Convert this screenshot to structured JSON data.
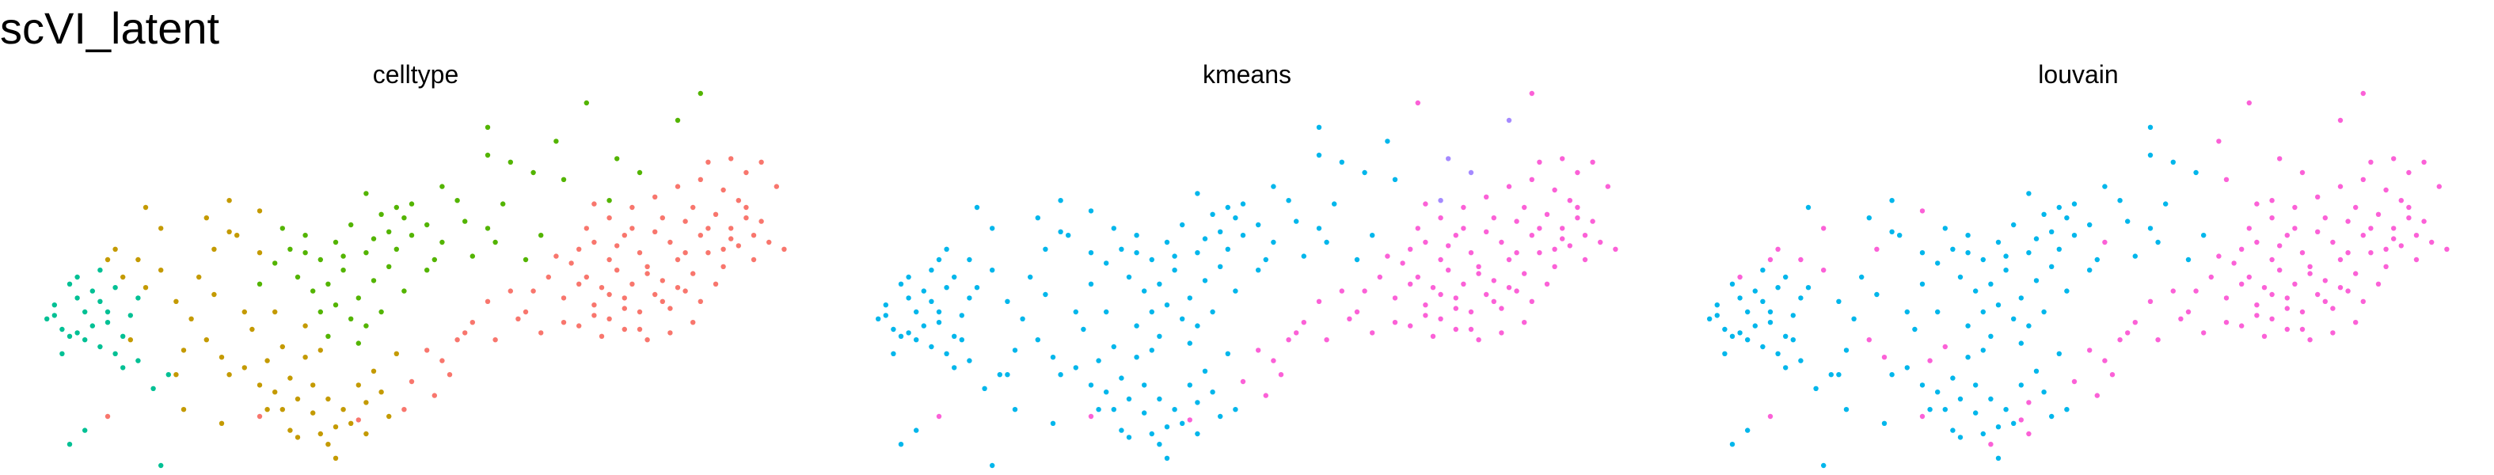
{
  "figure": {
    "title": "scVI_latent"
  },
  "chart_data": {
    "type": "scatter",
    "title": "scVI_latent",
    "xlabel": "",
    "ylabel": "",
    "grid": false,
    "legend": "none",
    "axis": {
      "x_range": [
        0,
        100
      ],
      "y_range": [
        0,
        100
      ]
    },
    "palette": {
      "c_red": "#F8766D",
      "c_orange": "#C49A00",
      "c_green": "#53B400",
      "c_teal": "#00C094",
      "c_cyan": "#00B6EB",
      "c_violet": "#A58AFF",
      "c_pink": "#FB61D7"
    },
    "panels": [
      {
        "id": "celltype",
        "title": "celltype"
      },
      {
        "id": "kmeans",
        "title": "kmeans"
      },
      {
        "id": "louvain",
        "title": "louvain"
      }
    ],
    "points": [
      [
        2,
        38,
        3,
        4,
        4
      ],
      [
        4,
        35,
        3,
        4,
        4
      ],
      [
        5,
        33,
        3,
        4,
        4
      ],
      [
        6,
        34,
        3,
        4,
        4
      ],
      [
        7,
        32,
        3,
        4,
        4
      ],
      [
        8,
        36,
        3,
        4,
        4
      ],
      [
        9,
        30,
        3,
        4,
        4
      ],
      [
        10,
        40,
        3,
        4,
        4
      ],
      [
        11,
        28,
        3,
        4,
        4
      ],
      [
        6,
        44,
        3,
        4,
        4
      ],
      [
        3,
        42,
        3,
        4,
        4
      ],
      [
        8,
        46,
        3,
        4,
        4
      ],
      [
        12,
        33,
        3,
        4,
        4
      ],
      [
        9,
        43,
        3,
        4,
        4
      ],
      [
        5,
        48,
        3,
        4,
        4
      ],
      [
        13,
        39,
        3,
        4,
        4
      ],
      [
        7,
        40,
        3,
        4,
        4
      ],
      [
        10,
        37,
        3,
        4,
        4
      ],
      [
        14,
        26,
        3,
        4,
        4
      ],
      [
        4,
        28,
        3,
        4,
        4
      ],
      [
        16,
        18,
        3,
        4,
        4
      ],
      [
        12,
        24,
        3,
        4,
        4
      ],
      [
        18,
        22,
        3,
        4,
        4
      ],
      [
        11,
        47,
        3,
        4,
        4
      ],
      [
        9,
        52,
        3,
        4,
        4
      ],
      [
        14,
        44,
        3,
        4,
        4
      ],
      [
        7,
        6,
        3,
        4,
        4
      ],
      [
        5,
        2,
        3,
        4,
        4
      ],
      [
        17,
        -8,
        3,
        4,
        4
      ],
      [
        6,
        50,
        3,
        4,
        6
      ],
      [
        3,
        39,
        3,
        4,
        4
      ],
      [
        10,
        55,
        1,
        4,
        6
      ],
      [
        12,
        50,
        1,
        4,
        4
      ],
      [
        14,
        55,
        1,
        4,
        6
      ],
      [
        15,
        47,
        1,
        4,
        4
      ],
      [
        13,
        32,
        1,
        4,
        4
      ],
      [
        11,
        58,
        1,
        4,
        6
      ],
      [
        17,
        52,
        1,
        4,
        6
      ],
      [
        19,
        22,
        1,
        4,
        4
      ],
      [
        20,
        29,
        1,
        4,
        4
      ],
      [
        23,
        32,
        1,
        4,
        6
      ],
      [
        25,
        27,
        1,
        4,
        6
      ],
      [
        26,
        22,
        1,
        4,
        4
      ],
      [
        28,
        24,
        1,
        4,
        4
      ],
      [
        30,
        19,
        1,
        4,
        4
      ],
      [
        31,
        26,
        1,
        4,
        6
      ],
      [
        32,
        17,
        1,
        4,
        4
      ],
      [
        33,
        12,
        1,
        4,
        4
      ],
      [
        34,
        21,
        1,
        4,
        4
      ],
      [
        35,
        15,
        1,
        4,
        4
      ],
      [
        36,
        27,
        1,
        4,
        4
      ],
      [
        37,
        11,
        1,
        4,
        4
      ],
      [
        38,
        5,
        1,
        4,
        4
      ],
      [
        39,
        2,
        1,
        4,
        6
      ],
      [
        40,
        -2,
        1,
        4,
        4
      ],
      [
        41,
        12,
        1,
        4,
        4
      ],
      [
        42,
        8,
        1,
        4,
        4
      ],
      [
        43,
        19,
        1,
        4,
        4
      ],
      [
        44,
        14,
        1,
        4,
        6
      ],
      [
        45,
        23,
        1,
        4,
        4
      ],
      [
        46,
        17,
        1,
        4,
        4
      ],
      [
        47,
        10,
        1,
        4,
        4
      ],
      [
        48,
        28,
        1,
        4,
        4
      ],
      [
        31,
        12,
        1,
        4,
        4
      ],
      [
        34,
        6,
        1,
        4,
        4
      ],
      [
        37,
        19,
        1,
        4,
        4
      ],
      [
        40,
        7,
        1,
        4,
        4
      ],
      [
        29,
        35,
        1,
        4,
        4
      ],
      [
        33,
        30,
        1,
        4,
        6
      ],
      [
        36,
        36,
        1,
        4,
        4
      ],
      [
        28,
        40,
        1,
        4,
        4
      ],
      [
        24,
        45,
        1,
        4,
        4
      ],
      [
        21,
        38,
        1,
        4,
        4
      ],
      [
        22,
        50,
        1,
        4,
        4
      ],
      [
        26,
        63,
        1,
        4,
        4
      ],
      [
        24,
        58,
        1,
        4,
        6
      ],
      [
        17,
        64,
        1,
        4,
        6
      ],
      [
        15,
        70,
        1,
        4,
        4
      ],
      [
        23,
        67,
        1,
        4,
        4
      ],
      [
        27,
        62,
        1,
        4,
        4
      ],
      [
        30,
        57,
        1,
        4,
        4
      ],
      [
        19,
        43,
        1,
        4,
        4
      ],
      [
        39,
        15,
        1,
        4,
        4
      ],
      [
        38,
        29,
        1,
        4,
        4
      ],
      [
        25,
        8,
        1,
        4,
        4
      ],
      [
        44,
        5,
        1,
        4,
        6
      ],
      [
        20,
        12,
        1,
        4,
        4
      ],
      [
        35,
        4,
        1,
        4,
        4
      ],
      [
        32,
        40,
        1,
        4,
        4
      ],
      [
        26,
        72,
        1,
        4,
        4
      ],
      [
        30,
        69,
        1,
        4,
        6
      ],
      [
        32,
        54,
        2,
        4,
        4
      ],
      [
        34,
        58,
        2,
        4,
        4
      ],
      [
        36,
        62,
        2,
        4,
        4
      ],
      [
        38,
        55,
        2,
        4,
        4
      ],
      [
        40,
        60,
        2,
        4,
        4
      ],
      [
        42,
        65,
        2,
        4,
        4
      ],
      [
        44,
        57,
        2,
        4,
        4
      ],
      [
        46,
        68,
        2,
        4,
        4
      ],
      [
        48,
        70,
        2,
        4,
        4
      ],
      [
        50,
        62,
        2,
        4,
        4
      ],
      [
        35,
        50,
        2,
        4,
        4
      ],
      [
        37,
        46,
        2,
        4,
        4
      ],
      [
        39,
        48,
        2,
        4,
        4
      ],
      [
        41,
        52,
        2,
        4,
        4
      ],
      [
        43,
        44,
        2,
        4,
        4
      ],
      [
        45,
        49,
        2,
        4,
        4
      ],
      [
        47,
        53,
        2,
        4,
        4
      ],
      [
        49,
        46,
        2,
        4,
        4
      ],
      [
        38,
        40,
        2,
        4,
        4
      ],
      [
        40,
        42,
        2,
        4,
        4
      ],
      [
        42,
        38,
        2,
        4,
        4
      ],
      [
        44,
        36,
        2,
        4,
        4
      ],
      [
        46,
        40,
        2,
        4,
        4
      ],
      [
        48,
        58,
        2,
        4,
        4
      ],
      [
        50,
        71,
        2,
        4,
        4
      ],
      [
        52,
        65,
        2,
        4,
        4
      ],
      [
        54,
        76,
        2,
        4,
        4
      ],
      [
        56,
        72,
        2,
        4,
        4
      ],
      [
        57,
        66,
        2,
        4,
        4
      ],
      [
        60,
        85,
        2,
        4,
        4
      ],
      [
        63,
        83,
        2,
        4,
        4
      ],
      [
        66,
        80,
        2,
        4,
        4
      ],
      [
        69,
        89,
        2,
        4,
        6
      ],
      [
        70,
        78,
        2,
        4,
        6
      ],
      [
        65,
        55,
        2,
        4,
        4
      ],
      [
        67,
        62,
        2,
        4,
        4
      ],
      [
        62,
        71,
        2,
        4,
        4
      ],
      [
        76,
        72,
        2,
        5,
        6
      ],
      [
        80,
        80,
        2,
        5,
        6
      ],
      [
        85,
        95,
        2,
        5,
        6
      ],
      [
        77,
        84,
        2,
        5,
        6
      ],
      [
        52,
        52,
        2,
        4,
        4
      ],
      [
        54,
        60,
        2,
        4,
        6
      ],
      [
        36,
        57,
        2,
        4,
        4
      ],
      [
        33,
        64,
        2,
        4,
        4
      ],
      [
        41,
        56,
        2,
        4,
        4
      ],
      [
        45,
        61,
        2,
        4,
        4
      ],
      [
        47,
        63,
        2,
        4,
        4
      ],
      [
        49,
        67,
        2,
        4,
        4
      ],
      [
        44,
        74,
        2,
        4,
        4
      ],
      [
        30,
        48,
        2,
        4,
        4
      ],
      [
        58,
        56,
        2,
        4,
        4
      ],
      [
        60,
        64,
        2,
        4,
        4
      ],
      [
        39,
        33,
        2,
        4,
        4
      ],
      [
        43,
        31,
        2,
        4,
        4
      ],
      [
        60,
        93,
        2,
        4,
        4
      ],
      [
        61,
        60,
        2,
        4,
        4
      ],
      [
        53,
        55,
        2,
        4,
        4
      ],
      [
        88,
        108,
        2,
        6,
        6
      ],
      [
        73,
        100,
        2,
        6,
        6
      ],
      [
        72,
        58,
        0,
        6,
        6
      ],
      [
        74,
        60,
        0,
        6,
        6
      ],
      [
        76,
        55,
        0,
        6,
        6
      ],
      [
        78,
        62,
        0,
        6,
        6
      ],
      [
        80,
        57,
        0,
        6,
        6
      ],
      [
        82,
        63,
        0,
        6,
        6
      ],
      [
        84,
        60,
        0,
        6,
        6
      ],
      [
        86,
        66,
        0,
        6,
        6
      ],
      [
        88,
        62,
        0,
        6,
        6
      ],
      [
        90,
        68,
        0,
        6,
        6
      ],
      [
        92,
        64,
        0,
        6,
        6
      ],
      [
        94,
        70,
        0,
        6,
        6
      ],
      [
        96,
        66,
        0,
        6,
        6
      ],
      [
        73,
        50,
        0,
        6,
        6
      ],
      [
        75,
        47,
        0,
        6,
        6
      ],
      [
        77,
        52,
        0,
        6,
        6
      ],
      [
        79,
        48,
        0,
        6,
        6
      ],
      [
        81,
        53,
        0,
        6,
        6
      ],
      [
        83,
        49,
        0,
        6,
        6
      ],
      [
        85,
        55,
        0,
        6,
        6
      ],
      [
        87,
        51,
        0,
        6,
        6
      ],
      [
        89,
        57,
        0,
        6,
        6
      ],
      [
        91,
        53,
        0,
        6,
        6
      ],
      [
        93,
        59,
        0,
        6,
        6
      ],
      [
        95,
        55,
        0,
        6,
        6
      ],
      [
        74,
        42,
        0,
        6,
        6
      ],
      [
        76,
        38,
        0,
        6,
        6
      ],
      [
        78,
        44,
        0,
        6,
        6
      ],
      [
        80,
        40,
        0,
        6,
        6
      ],
      [
        82,
        45,
        0,
        6,
        6
      ],
      [
        84,
        41,
        0,
        6,
        6
      ],
      [
        86,
        46,
        0,
        6,
        6
      ],
      [
        88,
        43,
        0,
        6,
        6
      ],
      [
        90,
        48,
        0,
        6,
        6
      ],
      [
        72,
        36,
        0,
        6,
        6
      ],
      [
        75,
        33,
        0,
        6,
        6
      ],
      [
        78,
        35,
        0,
        6,
        6
      ],
      [
        81,
        32,
        0,
        6,
        6
      ],
      [
        84,
        34,
        0,
        6,
        6
      ],
      [
        87,
        37,
        0,
        6,
        6
      ],
      [
        70,
        44,
        0,
        6,
        6
      ],
      [
        68,
        50,
        0,
        6,
        6
      ],
      [
        71,
        54,
        0,
        6,
        6
      ],
      [
        73,
        64,
        0,
        6,
        6
      ],
      [
        76,
        67,
        0,
        6,
        6
      ],
      [
        79,
        70,
        0,
        6,
        6
      ],
      [
        82,
        73,
        0,
        6,
        6
      ],
      [
        85,
        76,
        0,
        6,
        6
      ],
      [
        88,
        78,
        0,
        6,
        6
      ],
      [
        91,
        75,
        0,
        6,
        6
      ],
      [
        94,
        80,
        0,
        6,
        6
      ],
      [
        96,
        83,
        0,
        6,
        6
      ],
      [
        92,
        84,
        0,
        6,
        6
      ],
      [
        89,
        83,
        0,
        6,
        6
      ],
      [
        98,
        76,
        0,
        6,
        6
      ],
      [
        97,
        60,
        0,
        6,
        6
      ],
      [
        99,
        58,
        0,
        6,
        6
      ],
      [
        65,
        40,
        0,
        6,
        6
      ],
      [
        63,
        46,
        0,
        6,
        6
      ],
      [
        60,
        43,
        0,
        6,
        6
      ],
      [
        58,
        37,
        0,
        6,
        6
      ],
      [
        56,
        32,
        0,
        6,
        6
      ],
      [
        54,
        26,
        0,
        6,
        6
      ],
      [
        52,
        29,
        0,
        6,
        6
      ],
      [
        50,
        20,
        0,
        6,
        6
      ],
      [
        61,
        32,
        0,
        6,
        6
      ],
      [
        67,
        34,
        0,
        6,
        6
      ],
      [
        69,
        56,
        0,
        6,
        6
      ],
      [
        79,
        64,
        0,
        6,
        6
      ],
      [
        83,
        67,
        0,
        6,
        6
      ],
      [
        87,
        70,
        0,
        6,
        6
      ],
      [
        74,
        71,
        0,
        6,
        6
      ],
      [
        77,
        59,
        0,
        6,
        6
      ],
      [
        81,
        51,
        0,
        6,
        6
      ],
      [
        85,
        47,
        0,
        6,
        6
      ],
      [
        89,
        64,
        0,
        6,
        6
      ],
      [
        93,
        72,
        0,
        6,
        6
      ],
      [
        95,
        62,
        0,
        6,
        6
      ],
      [
        91,
        58,
        0,
        6,
        6
      ],
      [
        80,
        35,
        0,
        6,
        6
      ],
      [
        76,
        45,
        0,
        6,
        6
      ],
      [
        72,
        48,
        0,
        6,
        6
      ],
      [
        66,
        46,
        0,
        6,
        6
      ],
      [
        86,
        57,
        0,
        6,
        6
      ],
      [
        92,
        61,
        0,
        6,
        6
      ],
      [
        94,
        67,
        0,
        6,
        6
      ],
      [
        83,
        43,
        0,
        6,
        6
      ],
      [
        78,
        41,
        0,
        6,
        6
      ],
      [
        74,
        39,
        0,
        6,
        6
      ],
      [
        70,
        37,
        0,
        6,
        6
      ],
      [
        55,
        22,
        0,
        6,
        6
      ],
      [
        53,
        16,
        0,
        6,
        6
      ],
      [
        49,
        12,
        0,
        4,
        4
      ],
      [
        10,
        10,
        0,
        6,
        6
      ],
      [
        30,
        10,
        0,
        6,
        6
      ],
      [
        43,
        9,
        0,
        6,
        6
      ],
      [
        57,
        34,
        0,
        6,
        6
      ],
      [
        64,
        38,
        0,
        6,
        6
      ]
    ]
  }
}
